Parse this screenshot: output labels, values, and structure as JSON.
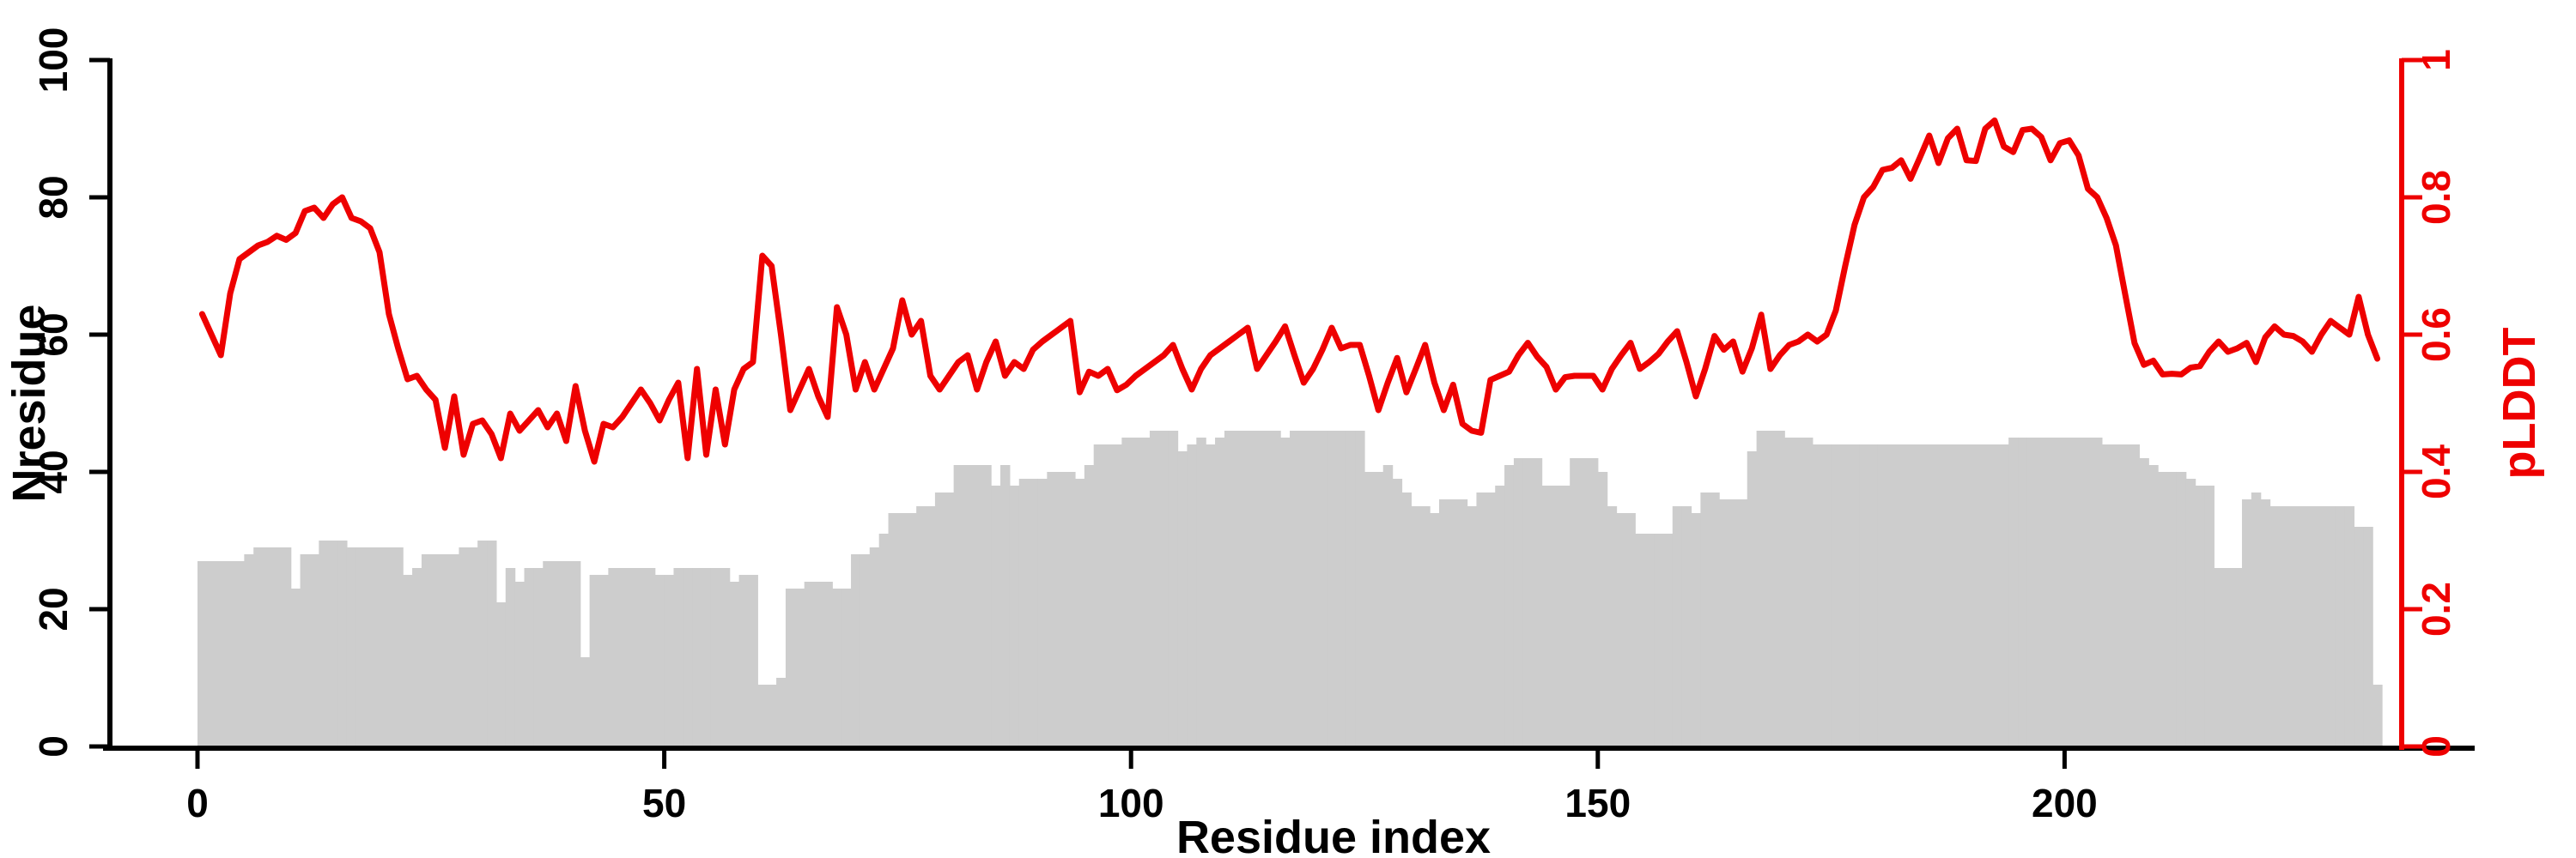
{
  "chart_data": {
    "type": "composite",
    "title": "",
    "xlabel": "Residue index",
    "ylabel_left": "Nresidue",
    "ylabel_right": "pLDDT",
    "x_ticks": [
      0,
      50,
      100,
      150,
      200
    ],
    "y_left_ticks": [
      0,
      20,
      40,
      60,
      80,
      100
    ],
    "y_right_ticks": [
      0,
      0.2,
      0.4,
      0.6,
      0.8,
      1
    ],
    "y_left_tick_labels": [
      "0",
      "20",
      "40",
      "60",
      "80",
      "100"
    ],
    "y_right_tick_labels": [
      "0",
      "0.2",
      "0.4",
      "0.6",
      "0.8",
      "1"
    ],
    "x_tick_labels": [
      "0",
      "50",
      "100",
      "150",
      "200"
    ],
    "x_range": [
      0,
      234
    ],
    "y_left_range": [
      0,
      100
    ],
    "y_right_range": [
      0,
      1
    ],
    "grid": false,
    "legend_position": "none",
    "axis_color_left": "#000000",
    "axis_color_bottom": "#000000",
    "axis_color_right": "#ee0000",
    "series": [
      {
        "name": "Nresidue",
        "type": "bar",
        "axis": "left",
        "color": "#cdcdcd",
        "values": [
          27,
          27,
          27,
          27,
          27,
          28,
          29,
          29,
          29,
          29,
          23,
          28,
          28,
          30,
          30,
          30,
          29,
          29,
          29,
          29,
          29,
          29,
          25,
          26,
          28,
          28,
          28,
          28,
          29,
          29,
          30,
          30,
          21,
          26,
          24,
          26,
          26,
          27,
          27,
          27,
          27,
          13,
          25,
          25,
          26,
          26,
          26,
          26,
          26,
          25,
          25,
          26,
          26,
          26,
          26,
          26,
          26,
          24,
          25,
          25,
          9,
          9,
          10,
          23,
          23,
          24,
          24,
          24,
          23,
          23,
          28,
          28,
          29,
          31,
          34,
          34,
          34,
          35,
          35,
          37,
          37,
          41,
          41,
          41,
          41,
          38,
          41,
          38,
          39,
          39,
          39,
          40,
          40,
          40,
          39,
          41,
          44,
          44,
          44,
          45,
          45,
          45,
          46,
          46,
          46,
          43,
          44,
          45,
          44,
          45,
          46,
          46,
          46,
          46,
          46,
          46,
          45,
          46,
          46,
          46,
          46,
          46,
          46,
          46,
          46,
          40,
          40,
          41,
          39,
          37,
          35,
          35,
          34,
          36,
          36,
          36,
          35,
          37,
          37,
          38,
          41,
          42,
          42,
          42,
          38,
          38,
          38,
          42,
          42,
          42,
          40,
          35,
          34,
          34,
          31,
          31,
          31,
          31,
          35,
          35,
          34,
          37,
          37,
          36,
          36,
          36,
          43,
          46,
          46,
          46,
          45,
          45,
          45,
          44,
          44,
          44,
          44,
          44,
          44,
          44,
          44,
          44,
          44,
          44,
          44,
          44,
          44,
          44,
          44,
          44,
          44,
          44,
          44,
          44,
          45,
          45,
          45,
          45,
          45,
          45,
          45,
          45,
          45,
          45,
          44,
          44,
          44,
          44,
          42,
          41,
          40,
          40,
          40,
          39,
          38,
          38,
          26,
          26,
          26,
          36,
          37,
          36,
          35,
          35,
          35,
          35,
          35,
          35,
          35,
          35,
          35,
          32,
          32,
          9
        ]
      },
      {
        "name": "pLDDT",
        "type": "line",
        "axis": "right",
        "color": "#ee0000",
        "values": [
          0.63,
          0.6,
          0.57,
          0.66,
          0.71,
          0.72,
          0.73,
          0.735,
          0.744,
          0.738,
          0.748,
          0.78,
          0.785,
          0.77,
          0.79,
          0.8,
          0.77,
          0.765,
          0.755,
          0.72,
          0.63,
          0.58,
          0.535,
          0.54,
          0.52,
          0.505,
          0.435,
          0.51,
          0.425,
          0.47,
          0.475,
          0.455,
          0.42,
          0.485,
          0.46,
          0.475,
          0.49,
          0.465,
          0.485,
          0.445,
          0.525,
          0.46,
          0.415,
          0.47,
          0.465,
          0.48,
          0.5,
          0.52,
          0.5,
          0.475,
          0.505,
          0.53,
          0.42,
          0.55,
          0.425,
          0.52,
          0.44,
          0.52,
          0.55,
          0.56,
          0.715,
          0.7,
          0.6,
          0.49,
          0.52,
          0.55,
          0.51,
          0.48,
          0.64,
          0.6,
          0.52,
          0.56,
          0.52,
          0.55,
          0.58,
          0.65,
          0.6,
          0.62,
          0.54,
          0.52,
          0.54,
          0.56,
          0.57,
          0.52,
          0.56,
          0.59,
          0.54,
          0.56,
          0.55,
          0.578,
          0.59,
          0.6,
          0.61,
          0.62,
          0.516,
          0.546,
          0.54,
          0.55,
          0.519,
          0.527,
          0.54,
          0.55,
          0.56,
          0.57,
          0.585,
          0.55,
          0.52,
          0.55,
          0.57,
          0.58,
          0.59,
          0.6,
          0.61,
          0.55,
          0.57,
          0.59,
          0.612,
          0.57,
          0.53,
          0.55,
          0.578,
          0.61,
          0.58,
          0.585,
          0.585,
          0.54,
          0.49,
          0.53,
          0.566,
          0.516,
          0.55,
          0.585,
          0.53,
          0.49,
          0.527,
          0.47,
          0.46,
          0.457,
          0.534,
          0.54,
          0.546,
          0.57,
          0.588,
          0.568,
          0.553,
          0.52,
          0.538,
          0.54,
          0.54,
          0.54,
          0.52,
          0.55,
          0.57,
          0.588,
          0.55,
          0.56,
          0.572,
          0.59,
          0.605,
          0.56,
          0.51,
          0.55,
          0.598,
          0.578,
          0.59,
          0.546,
          0.58,
          0.629,
          0.55,
          0.57,
          0.585,
          0.59,
          0.6,
          0.59,
          0.6,
          0.635,
          0.7,
          0.76,
          0.8,
          0.815,
          0.84,
          0.843,
          0.854,
          0.827,
          0.858,
          0.89,
          0.85,
          0.886,
          0.9,
          0.854,
          0.853,
          0.9,
          0.912,
          0.874,
          0.866,
          0.898,
          0.9,
          0.888,
          0.854,
          0.879,
          0.883,
          0.861,
          0.8125,
          0.8,
          0.77,
          0.73,
          0.658,
          0.5875,
          0.556,
          0.562,
          0.542,
          0.543,
          0.542,
          0.552,
          0.554,
          0.575,
          0.59,
          0.575,
          0.58,
          0.588,
          0.56,
          0.596,
          0.612,
          0.6,
          0.598,
          0.59,
          0.575,
          0.6,
          0.62,
          0.61,
          0.6,
          0.655,
          0.6,
          0.565
        ]
      }
    ]
  }
}
